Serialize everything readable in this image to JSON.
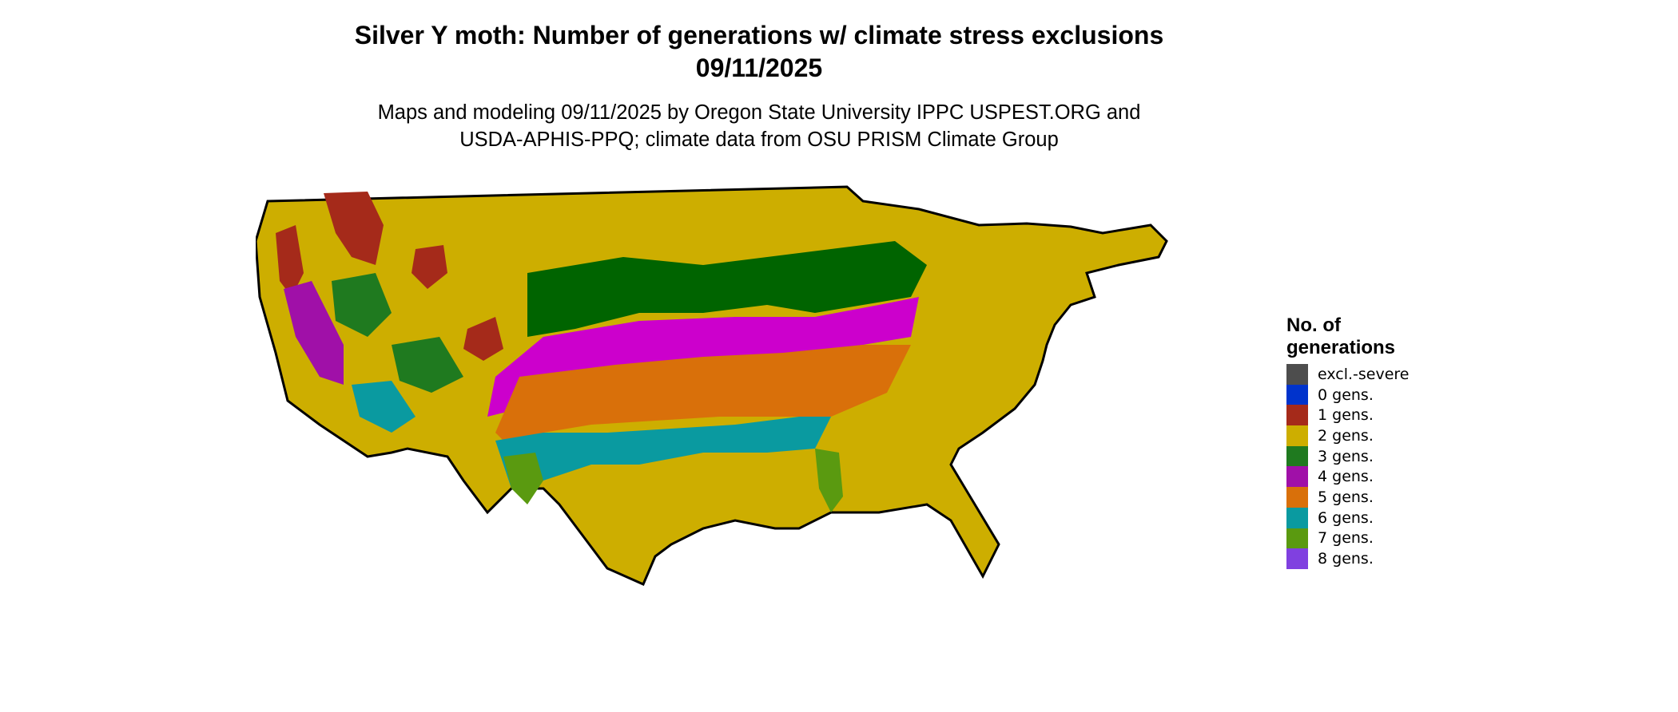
{
  "title_line1": "Silver Y moth: Number of generations w/ climate stress exclusions",
  "title_line2": "09/11/2025",
  "subtitle_line1": "Maps and modeling 09/11/2025 by Oregon State University IPPC USPEST.ORG and",
  "subtitle_line2": "USDA-APHIS-PPQ; climate data from OSU PRISM Climate Group",
  "legend": {
    "title_line1": "No. of",
    "title_line2": "generations",
    "items": [
      {
        "label": "excl.-severe",
        "color": "#4d4d4d"
      },
      {
        "label": "0 gens.",
        "color": "#0033cc"
      },
      {
        "label": "1 gens.",
        "color": "#a52a1a"
      },
      {
        "label": "2 gens.",
        "color": "#cdae00"
      },
      {
        "label": "3 gens.",
        "color": "#1f7a1f"
      },
      {
        "label": "4 gens.",
        "color": "#a010a8"
      },
      {
        "label": "5 gens.",
        "color": "#d9700a"
      },
      {
        "label": "6 gens.",
        "color": "#0a9aa0"
      },
      {
        "label": "7 gens.",
        "color": "#5a9a10"
      },
      {
        "label": "8 gens.",
        "color": "#8040e0"
      }
    ]
  }
}
